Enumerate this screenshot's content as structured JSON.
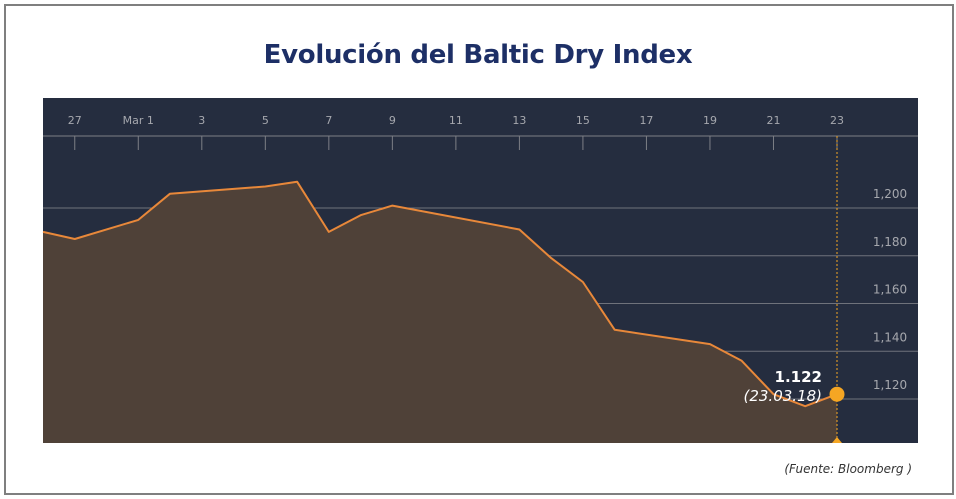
{
  "title": "Evolución del Baltic Dry Index",
  "source": "(Fuente: Bloomberg )",
  "chart_data": {
    "type": "area",
    "title": "Evolución del Baltic Dry Index",
    "x_tick_labels": [
      "27",
      "Mar 1",
      "3",
      "5",
      "7",
      "9",
      "11",
      "13",
      "15",
      "17",
      "19",
      "21",
      "23"
    ],
    "y_ticks": [
      1120,
      1140,
      1160,
      1180,
      1200
    ],
    "y_tick_labels": [
      "1,120",
      "1,140",
      "1,160",
      "1,180",
      "1,200"
    ],
    "ylim": [
      1104,
      1250
    ],
    "grid": true,
    "series": [
      {
        "x": [
          "2018-02-26",
          "2018-02-27",
          "2018-03-01",
          "2018-03-02",
          "2018-03-05",
          "2018-03-06",
          "2018-03-07",
          "2018-03-08",
          "2018-03-09",
          "2018-03-13",
          "2018-03-14",
          "2018-03-15",
          "2018-03-16",
          "2018-03-19",
          "2018-03-20",
          "2018-03-21",
          "2018-03-22",
          "2018-03-23"
        ],
        "values": [
          1190,
          1187,
          1195,
          1206,
          1209,
          1211,
          1190,
          1197,
          1201,
          1191,
          1179,
          1169,
          1149,
          1143,
          1136,
          1122,
          1117,
          1122
        ]
      }
    ],
    "annotation": {
      "value": "1.122",
      "date": "(23.03.18)"
    },
    "colors": {
      "background": "#252d3f",
      "area_fill": "#4f4138",
      "line": "#e8883a",
      "marker": "#f5a623",
      "grid": "#7d7f86",
      "tick_label": "#a6a8ae"
    }
  }
}
